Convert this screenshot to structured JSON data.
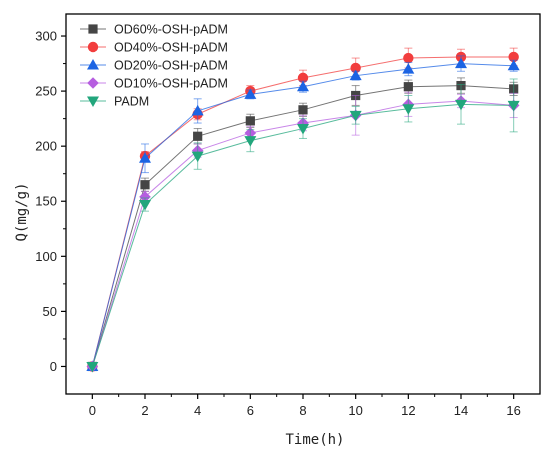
{
  "chart_data": {
    "type": "line",
    "title": "",
    "xlabel": "Time(h)",
    "ylabel": "Q(mg/g)",
    "xlim": [
      -1,
      17
    ],
    "ylim": [
      -25,
      320
    ],
    "xticks": [
      0,
      2,
      4,
      6,
      8,
      10,
      12,
      14,
      16
    ],
    "yticks": [
      0,
      50,
      100,
      150,
      200,
      250,
      300
    ],
    "grid": false,
    "legend_position": "top-left",
    "x": [
      0,
      2,
      4,
      6,
      8,
      10,
      12,
      14,
      16
    ],
    "series": [
      {
        "name": "OD60%-OSH-pADM",
        "color": "#454545",
        "marker": "square",
        "values": [
          0,
          165,
          209,
          223,
          233,
          246,
          254,
          255,
          252
        ],
        "errors": [
          0,
          6,
          7,
          6,
          6,
          9,
          6,
          7,
          6
        ]
      },
      {
        "name": "OD40%-OSH-pADM",
        "color": "#f23d3d",
        "marker": "circle",
        "values": [
          0,
          191,
          229,
          250,
          262,
          271,
          280,
          281,
          281
        ],
        "errors": [
          0,
          4,
          5,
          5,
          7,
          9,
          9,
          7,
          8
        ]
      },
      {
        "name": "OD20%-OSH-pADM",
        "color": "#1c64e3",
        "marker": "triangle-up",
        "values": [
          0,
          189,
          232,
          247,
          254,
          264,
          270,
          275,
          273
        ],
        "errors": [
          0,
          13,
          11,
          4,
          5,
          4,
          6,
          7,
          5
        ]
      },
      {
        "name": "OD10%-OSH-pADM",
        "color": "#b65ee0",
        "marker": "diamond",
        "values": [
          0,
          154,
          196,
          212,
          221,
          228,
          238,
          241,
          237
        ],
        "errors": [
          0,
          5,
          6,
          6,
          7,
          18,
          11,
          6,
          11
        ]
      },
      {
        "name": "PADM",
        "color": "#22a67c",
        "marker": "triangle-down",
        "values": [
          0,
          147,
          191,
          205,
          216,
          228,
          234,
          238,
          237
        ],
        "errors": [
          0,
          6,
          12,
          10,
          9,
          8,
          12,
          18,
          24
        ]
      }
    ]
  }
}
